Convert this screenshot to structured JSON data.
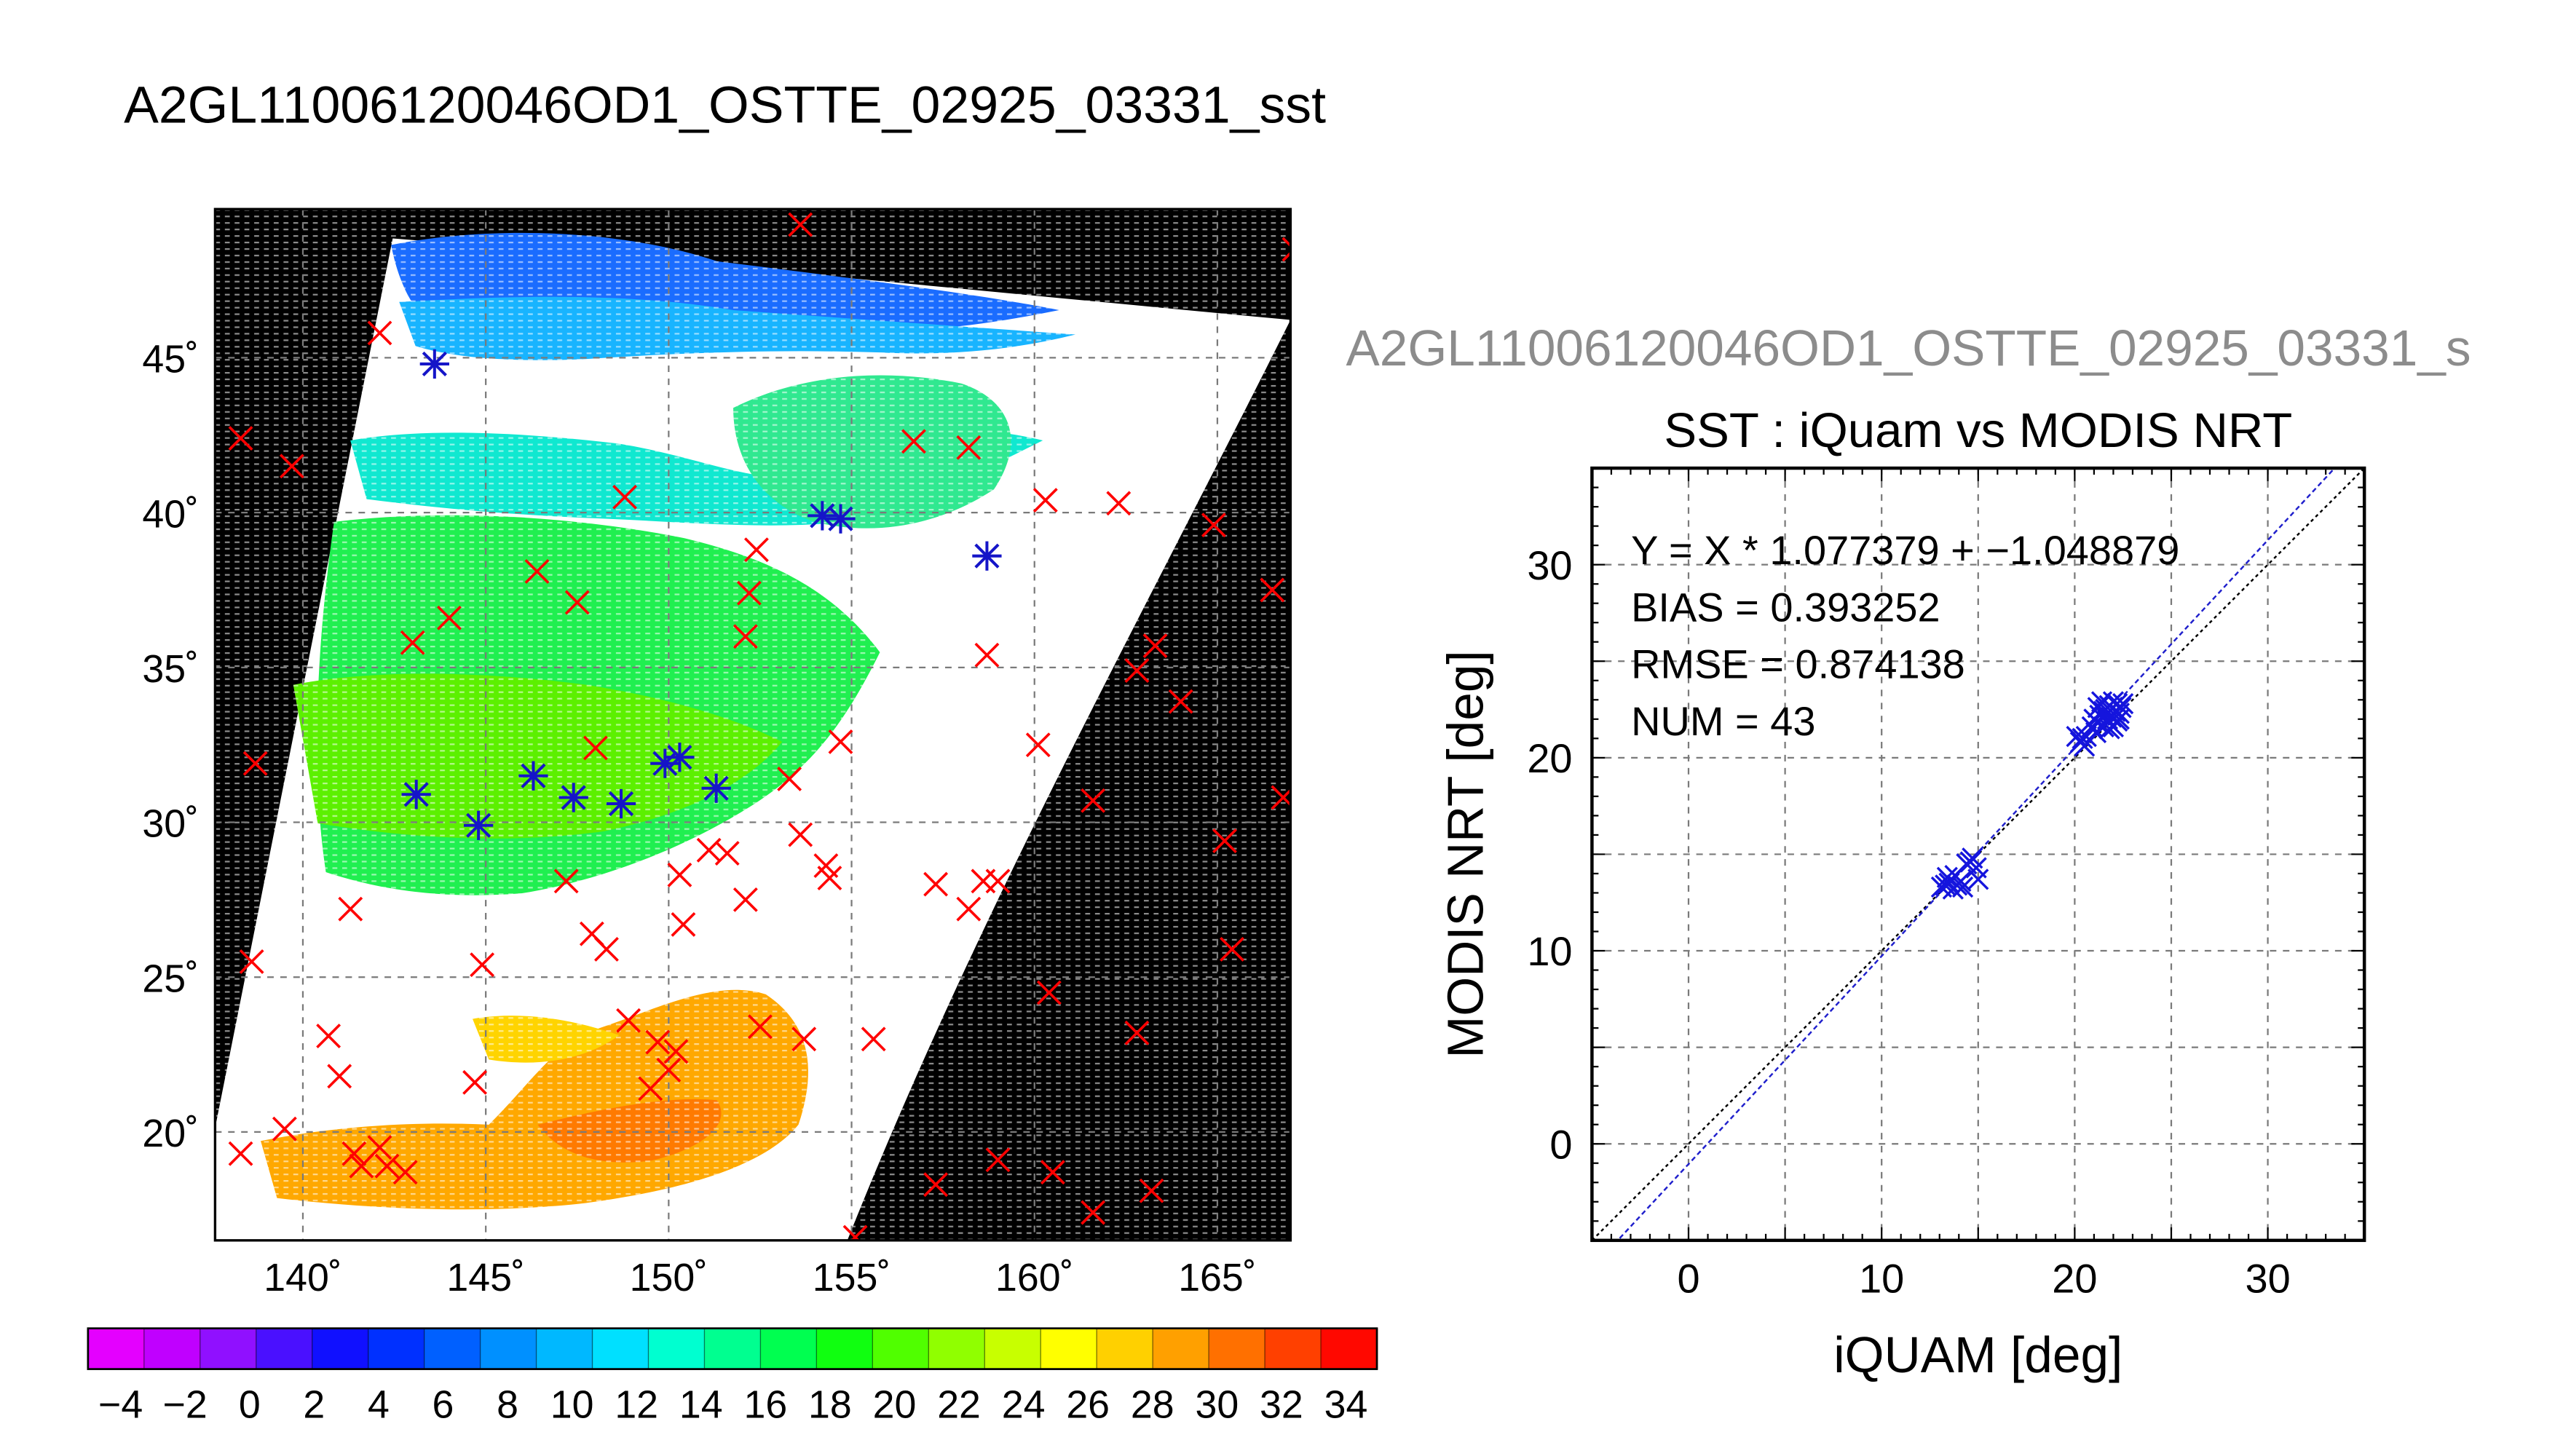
{
  "figure_title": "A2GL11006120046OD1_OSTTE_02925_03331_sst",
  "colors": {
    "match_marker": "#ff0000",
    "valid_match_marker": "#1515c8",
    "scatter_marker": "#1515dd",
    "fit_line": "#2020cc",
    "identity_line": "#000000",
    "grid": "#7a7a7a",
    "land": "#000000",
    "cloud": "#ffffff"
  },
  "map": {
    "lat_ticks": [
      "45˚",
      "40˚",
      "35˚",
      "30˚",
      "25˚",
      "20˚"
    ],
    "lon_ticks": [
      "140˚",
      "145˚",
      "150˚",
      "155˚",
      "160˚",
      "165˚"
    ]
  },
  "colorbar": {
    "tick_labels": [
      "−4",
      "−2",
      "0",
      "2",
      "4",
      "6",
      "8",
      "10",
      "12",
      "14",
      "16",
      "18",
      "20",
      "22",
      "24",
      "26",
      "28",
      "30",
      "32",
      "34"
    ],
    "colors": [
      "#e400ff",
      "#c000ff",
      "#9010ff",
      "#4a10ff",
      "#1010ff",
      "#0030ff",
      "#0060ff",
      "#0090ff",
      "#00b8ff",
      "#00e0ff",
      "#00ffd0",
      "#00ff90",
      "#00ff50",
      "#10ff10",
      "#50ff00",
      "#90ff00",
      "#c8ff00",
      "#ffff00",
      "#ffd000",
      "#ffa000",
      "#ff7000",
      "#ff4000",
      "#ff0800"
    ]
  },
  "scatter": {
    "overlay_title": "A2GL11006120046OD1_OSTTE_02925_03331_s",
    "stats": [
      "Y = X * 1.077379 + −1.048879",
      "BIAS = 0.393252",
      "RMSE = 0.874138",
      "NUM = 43"
    ]
  },
  "chart_data": [
    {
      "type": "scatter",
      "title": "",
      "xlabel": "",
      "ylabel": "",
      "xlim": [
        137.6,
        167.0
      ],
      "ylim": [
        16.5,
        49.8
      ],
      "grid": true,
      "series": [
        {
          "values": [
            [
              138.3,
              42.4
            ],
            [
              139.7,
              41.5
            ],
            [
              142.1,
              45.8
            ],
            [
              153.6,
              49.3
            ],
            [
              167.1,
              48.5
            ],
            [
              148.8,
              40.5
            ],
            [
              156.7,
              42.3
            ],
            [
              158.2,
              42.1
            ],
            [
              160.3,
              40.4
            ],
            [
              162.3,
              40.3
            ],
            [
              164.9,
              39.6
            ],
            [
              166.5,
              37.5
            ],
            [
              152.4,
              38.8
            ],
            [
              152.2,
              37.4
            ],
            [
              146.4,
              38.1
            ],
            [
              147.5,
              37.1
            ],
            [
              143.0,
              35.8
            ],
            [
              144.0,
              36.6
            ],
            [
              152.1,
              36.0
            ],
            [
              158.7,
              35.4
            ],
            [
              163.3,
              35.7
            ],
            [
              162.8,
              34.9
            ],
            [
              164.0,
              33.9
            ],
            [
              154.7,
              32.6
            ],
            [
              160.1,
              32.5
            ],
            [
              138.7,
              31.9
            ],
            [
              148.0,
              32.4
            ],
            [
              153.3,
              31.4
            ],
            [
              161.6,
              30.7
            ],
            [
              166.8,
              30.8
            ],
            [
              153.6,
              29.6
            ],
            [
              154.3,
              28.6
            ],
            [
              154.4,
              28.2
            ],
            [
              151.1,
              29.1
            ],
            [
              151.6,
              29.0
            ],
            [
              147.2,
              28.1
            ],
            [
              150.3,
              28.3
            ],
            [
              152.1,
              27.5
            ],
            [
              157.3,
              28.0
            ],
            [
              158.6,
              28.1
            ],
            [
              159.0,
              28.1
            ],
            [
              158.2,
              27.2
            ],
            [
              165.2,
              29.4
            ],
            [
              141.3,
              27.2
            ],
            [
              147.9,
              26.4
            ],
            [
              148.3,
              25.9
            ],
            [
              150.4,
              26.7
            ],
            [
              138.6,
              25.5
            ],
            [
              144.9,
              25.4
            ],
            [
              160.4,
              24.5
            ],
            [
              165.4,
              25.9
            ],
            [
              140.7,
              23.1
            ],
            [
              148.9,
              23.6
            ],
            [
              149.7,
              22.9
            ],
            [
              150.2,
              22.6
            ],
            [
              152.5,
              23.4
            ],
            [
              153.7,
              23.0
            ],
            [
              155.6,
              23.0
            ],
            [
              162.8,
              23.2
            ],
            [
              150.0,
              22.0
            ],
            [
              149.5,
              21.4
            ],
            [
              144.7,
              21.6
            ],
            [
              141.0,
              21.8
            ],
            [
              139.5,
              20.1
            ],
            [
              138.3,
              19.3
            ],
            [
              141.4,
              19.3
            ],
            [
              141.6,
              18.9
            ],
            [
              142.1,
              19.5
            ],
            [
              142.3,
              18.9
            ],
            [
              142.8,
              18.7
            ],
            [
              159.0,
              19.1
            ],
            [
              157.3,
              18.3
            ],
            [
              160.5,
              18.7
            ],
            [
              163.2,
              18.1
            ],
            [
              161.6,
              17.4
            ],
            [
              155.1,
              16.6
            ]
          ]
        },
        {
          "values": [
            [
              143.6,
              44.8
            ],
            [
              154.2,
              39.9
            ],
            [
              154.7,
              39.8
            ],
            [
              158.7,
              38.6
            ],
            [
              143.1,
              30.9
            ],
            [
              144.8,
              29.9
            ],
            [
              146.3,
              31.5
            ],
            [
              147.4,
              30.8
            ],
            [
              148.7,
              30.6
            ],
            [
              149.9,
              31.9
            ],
            [
              150.3,
              32.1
            ],
            [
              151.3,
              31.1
            ]
          ]
        }
      ]
    },
    {
      "type": "scatter",
      "title": "SST : iQuam vs MODIS NRT",
      "xlabel": "iQUAM [deg]",
      "ylabel": "MODIS NRT [deg]",
      "xlim": [
        -5,
        35
      ],
      "ylim": [
        -5,
        35
      ],
      "xticks": [
        0,
        10,
        20,
        30
      ],
      "yticks": [
        0,
        10,
        20,
        30
      ],
      "grid": true,
      "series": [
        {
          "values": [
            [
              13.1,
              13.3
            ],
            [
              13.3,
              13.4
            ],
            [
              13.5,
              13.5
            ],
            [
              13.7,
              13.2
            ],
            [
              13.9,
              13.4
            ],
            [
              14.1,
              13.6
            ],
            [
              14.2,
              13.3
            ],
            [
              14.4,
              14.5
            ],
            [
              14.7,
              14.8
            ],
            [
              14.9,
              14.3
            ],
            [
              15.0,
              13.7
            ],
            [
              13.4,
              13.8
            ],
            [
              20.1,
              21.1
            ],
            [
              20.3,
              20.8
            ],
            [
              20.5,
              20.6
            ],
            [
              20.6,
              21.1
            ],
            [
              21.0,
              22.0
            ],
            [
              21.2,
              21.8
            ],
            [
              21.3,
              22.2
            ],
            [
              21.5,
              21.6
            ],
            [
              21.6,
              22.5
            ],
            [
              21.7,
              21.9
            ],
            [
              21.8,
              22.7
            ],
            [
              21.9,
              22.1
            ],
            [
              22.0,
              21.6
            ],
            [
              22.1,
              22.4
            ],
            [
              22.2,
              22.8
            ],
            [
              22.3,
              22.0
            ],
            [
              22.4,
              22.6
            ],
            [
              21.4,
              22.9
            ],
            [
              21.1,
              21.3
            ],
            [
              21.8,
              21.5
            ],
            [
              22.2,
              21.9
            ],
            [
              20.9,
              21.6
            ],
            [
              21.5,
              22.4
            ],
            [
              22.0,
              22.9
            ],
            [
              22.3,
              22.3
            ],
            [
              21.7,
              22.0
            ],
            [
              20.4,
              21.0
            ],
            [
              21.2,
              22.6
            ],
            [
              22.5,
              22.8
            ],
            [
              13.8,
              13.9
            ],
            [
              14.6,
              14.6
            ]
          ]
        }
      ]
    }
  ]
}
